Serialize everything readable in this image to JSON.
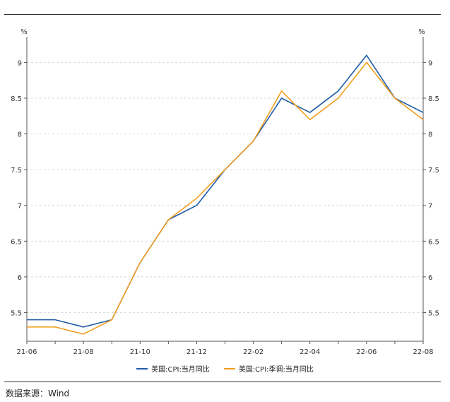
{
  "source_text": "数据来源：Wind",
  "chart_data": {
    "type": "line",
    "x": [
      "21-06",
      "21-07",
      "21-08",
      "21-09",
      "21-10",
      "21-11",
      "21-12",
      "22-01",
      "22-02",
      "22-03",
      "22-04",
      "22-05",
      "22-06",
      "22-07",
      "22-08"
    ],
    "x_tick_labels": [
      "21-06",
      "21-08",
      "21-10",
      "21-12",
      "22-02",
      "22-04",
      "22-06",
      "22-08"
    ],
    "y_unit_left": "%",
    "y_unit_right": "%",
    "ylim": [
      5.1,
      9.3
    ],
    "yticks": [
      5.5,
      6,
      6.5,
      7,
      7.5,
      8,
      8.5,
      9
    ],
    "grid": true,
    "legend_position": "bottom",
    "series": [
      {
        "name": "美国:CPI:当月同比",
        "color": "#1f5ca8",
        "values": [
          5.4,
          5.4,
          5.3,
          5.4,
          6.2,
          6.8,
          7.0,
          7.5,
          7.9,
          8.5,
          8.3,
          8.6,
          9.1,
          8.5,
          8.3
        ]
      },
      {
        "name": "美国:CPI:季调:当月同比",
        "color": "#f0a020",
        "values": [
          5.3,
          5.3,
          5.2,
          5.4,
          6.2,
          6.8,
          7.1,
          7.5,
          7.9,
          8.6,
          8.2,
          8.5,
          9.0,
          8.5,
          8.2
        ]
      }
    ]
  }
}
